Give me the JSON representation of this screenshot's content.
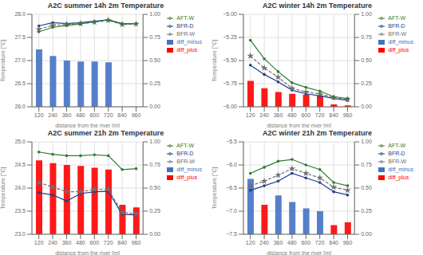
{
  "chart_data": [
    {
      "type": "line",
      "title": "A2C summer 14h 2m Temperature",
      "x_label": "distance from the river [m]",
      "y_label": "Temperature [°C]",
      "x": [
        120,
        240,
        360,
        480,
        600,
        720,
        840,
        960
      ],
      "xlim": [
        60,
        1020
      ],
      "xticks": [
        120,
        240,
        360,
        480,
        600,
        720,
        840,
        960
      ],
      "ylim": [
        26.0,
        28.0
      ],
      "yticks": [
        {
          "value": 26.0,
          "label": "26.0"
        },
        26.5,
        {
          "value": 27.0,
          "label": "27.0"
        },
        27.5,
        {
          "value": 28.0,
          "label": "28.0"
        }
      ],
      "y2lim": [
        0,
        1.0
      ],
      "y2ticks": [
        {
          "value": 0,
          "label": "0.00"
        },
        0.25,
        {
          "value": 0.5,
          "label": "0.50"
        },
        0.75,
        {
          "value": 1.0,
          "label": "1.00"
        }
      ],
      "grid": true,
      "legend": "right",
      "series": [
        {
          "name": "diff_minus",
          "type": "bar",
          "axis": "y2",
          "color": "#4472C4",
          "values": [
            0.62,
            0.55,
            0.5,
            0.49,
            0.49,
            0.48,
            0,
            0
          ]
        },
        {
          "name": "diff_plus",
          "type": "bar",
          "axis": "y2",
          "color": "#FF0000",
          "values": [
            0,
            0,
            0,
            0,
            0,
            0,
            0,
            0
          ]
        },
        {
          "name": "BFR-D",
          "type": "line",
          "color": "#1F3F8F",
          "marker": "circle",
          "line_style": "solid",
          "values": [
            27.75,
            27.82,
            27.8,
            27.82,
            27.85,
            27.88,
            27.8,
            27.8
          ]
        },
        {
          "name": "BFR-W",
          "type": "line",
          "color": "#707070",
          "marker": "star",
          "line_style": "dashed",
          "values": [
            27.68,
            27.76,
            27.78,
            27.8,
            27.83,
            27.87,
            27.78,
            27.79
          ]
        },
        {
          "name": "AFT-W",
          "type": "line",
          "color": "#2E7D32",
          "marker": "circle",
          "line_style": "solid",
          "values": [
            27.62,
            27.72,
            27.76,
            27.79,
            27.84,
            27.88,
            27.79,
            27.8
          ]
        }
      ]
    },
    {
      "type": "line",
      "title": "A2C winter 14h 2m Temperature",
      "x_label": "distance from the river [m]",
      "y_label": "Temperature [°C]",
      "x": [
        120,
        240,
        360,
        480,
        600,
        720,
        840,
        960
      ],
      "xlim": [
        60,
        1020
      ],
      "xticks": [
        120,
        240,
        360,
        480,
        600,
        720,
        840,
        960
      ],
      "ylim": [
        -6.0,
        -5.0
      ],
      "yticks": [
        {
          "value": -6.0,
          "label": "−6.00"
        },
        {
          "value": -5.75,
          "label": "−5.75"
        },
        {
          "value": -5.5,
          "label": "−5.50"
        },
        {
          "value": -5.25,
          "label": "−5.25"
        },
        {
          "value": -5.0,
          "label": "−5.00"
        }
      ],
      "y2lim": [
        0,
        1.0
      ],
      "y2ticks": [
        {
          "value": 0,
          "label": "0.00"
        },
        0.25,
        {
          "value": 0.5,
          "label": "0.50"
        },
        0.75,
        {
          "value": 1.0,
          "label": "1.00"
        }
      ],
      "grid": true,
      "legend": "right",
      "series": [
        {
          "name": "diff_minus",
          "type": "bar",
          "axis": "y2",
          "color": "#4472C4",
          "values": [
            0,
            0,
            0,
            0,
            0,
            0,
            0,
            0
          ]
        },
        {
          "name": "diff_plus",
          "type": "bar",
          "axis": "y2",
          "color": "#FF0000",
          "values": [
            0.28,
            0.2,
            0.16,
            0.14,
            0.13,
            0.12,
            0.025,
            0.015
          ]
        },
        {
          "name": "BFR-D",
          "type": "line",
          "color": "#1F3F8F",
          "marker": "circle",
          "line_style": "solid",
          "values": [
            -5.55,
            -5.65,
            -5.73,
            -5.82,
            -5.86,
            -5.88,
            -5.91,
            -5.93
          ]
        },
        {
          "name": "BFR-W",
          "type": "line",
          "color": "#707070",
          "marker": "star",
          "line_style": "dashed",
          "values": [
            -5.45,
            -5.58,
            -5.68,
            -5.8,
            -5.84,
            -5.86,
            -5.9,
            -5.92
          ]
        },
        {
          "name": "AFT-W",
          "type": "line",
          "color": "#2E7D32",
          "marker": "circle",
          "line_style": "solid",
          "values": [
            -5.28,
            -5.48,
            -5.62,
            -5.74,
            -5.79,
            -5.83,
            -5.89,
            -5.91
          ]
        }
      ]
    },
    {
      "type": "line",
      "title": "A2C summer 21h 2m Temperature",
      "x_label": "distance from the river [m]",
      "y_label": "Temperature [°C]",
      "x": [
        120,
        240,
        360,
        480,
        600,
        720,
        840,
        960
      ],
      "xlim": [
        60,
        1020
      ],
      "xticks": [
        120,
        240,
        360,
        480,
        600,
        720,
        840,
        960
      ],
      "ylim": [
        23.0,
        25.0
      ],
      "yticks": [
        {
          "value": 23.0,
          "label": "23.0"
        },
        23.5,
        {
          "value": 24.0,
          "label": "24.0"
        },
        24.5,
        {
          "value": 25.0,
          "label": "25.0"
        }
      ],
      "y2lim": [
        0,
        1.0
      ],
      "y2ticks": [
        {
          "value": 0,
          "label": "0.00"
        },
        0.25,
        {
          "value": 0.5,
          "label": "0.50"
        },
        0.75,
        {
          "value": 1.0,
          "label": "1.00"
        }
      ],
      "grid": true,
      "legend": "right",
      "series": [
        {
          "name": "diff_minus",
          "type": "bar",
          "axis": "y2",
          "color": "#4472C4",
          "values": [
            0,
            0,
            0,
            0,
            0,
            0,
            0,
            0
          ]
        },
        {
          "name": "diff_plus",
          "type": "bar",
          "axis": "y2",
          "color": "#FF0000",
          "values": [
            0.8,
            0.77,
            0.75,
            0.74,
            0.72,
            0.7,
            0.32,
            0.29
          ]
        },
        {
          "name": "BFR-D",
          "type": "line",
          "color": "#1F3F8F",
          "marker": "circle",
          "line_style": "solid",
          "values": [
            23.9,
            23.85,
            23.72,
            23.88,
            23.92,
            23.93,
            23.43,
            23.42
          ]
        },
        {
          "name": "BFR-W",
          "type": "line",
          "color": "#707070",
          "marker": "star",
          "line_style": "dashed",
          "values": [
            24.12,
            24.02,
            23.92,
            23.92,
            23.97,
            23.97,
            23.47,
            23.44
          ]
        },
        {
          "name": "AFT-W",
          "type": "line",
          "color": "#2E7D32",
          "marker": "circle",
          "line_style": "solid",
          "values": [
            24.78,
            24.73,
            24.7,
            24.7,
            24.72,
            24.7,
            24.4,
            24.42
          ]
        }
      ]
    },
    {
      "type": "line",
      "title": "A2C winter 21h 2m Temperature",
      "x_label": "distance from the river [m]",
      "y_label": "Temperature [°C]",
      "x": [
        120,
        240,
        360,
        480,
        600,
        720,
        840,
        960
      ],
      "xlim": [
        60,
        1020
      ],
      "xticks": [
        120,
        240,
        360,
        480,
        600,
        720,
        840,
        960
      ],
      "ylim": [
        -7.5,
        -5.5
      ],
      "yticks": [
        {
          "value": -7.5,
          "label": "−7.5"
        },
        {
          "value": -7.0,
          "label": "−7.0"
        },
        {
          "value": -6.5,
          "label": "−6.5"
        },
        {
          "value": -6.0,
          "label": "−6.0"
        },
        {
          "value": -5.5,
          "label": "−5.5"
        }
      ],
      "y2lim": [
        0,
        1.0
      ],
      "y2ticks": [
        {
          "value": 0,
          "label": "0.00"
        },
        0.25,
        {
          "value": 0.5,
          "label": "0.50"
        },
        0.75,
        {
          "value": 1.0,
          "label": "1.00"
        }
      ],
      "grid": true,
      "legend": "right",
      "series": [
        {
          "name": "diff_minus",
          "type": "bar",
          "axis": "y2",
          "color": "#4472C4",
          "values": [
            0.6,
            0,
            0.42,
            0.35,
            0.28,
            0.25,
            0,
            0
          ]
        },
        {
          "name": "diff_plus",
          "type": "bar",
          "axis": "y2",
          "color": "#FF0000",
          "values": [
            0,
            0.32,
            0,
            0,
            0,
            0,
            0.1,
            0.13
          ]
        },
        {
          "name": "BFR-D",
          "type": "line",
          "color": "#1F3F8F",
          "marker": "circle",
          "line_style": "solid",
          "values": [
            -6.55,
            -6.45,
            -6.35,
            -6.18,
            -6.28,
            -6.38,
            -6.58,
            -6.65
          ]
        },
        {
          "name": "BFR-W",
          "type": "line",
          "color": "#707070",
          "marker": "star",
          "line_style": "dashed",
          "values": [
            -6.45,
            -6.35,
            -6.22,
            -6.08,
            -6.18,
            -6.28,
            -6.48,
            -6.55
          ]
        },
        {
          "name": "AFT-W",
          "type": "line",
          "color": "#2E7D32",
          "marker": "circle",
          "line_style": "solid",
          "values": [
            -6.18,
            -6.05,
            -5.92,
            -5.88,
            -6.0,
            -6.1,
            -6.38,
            -6.45
          ]
        }
      ]
    }
  ]
}
